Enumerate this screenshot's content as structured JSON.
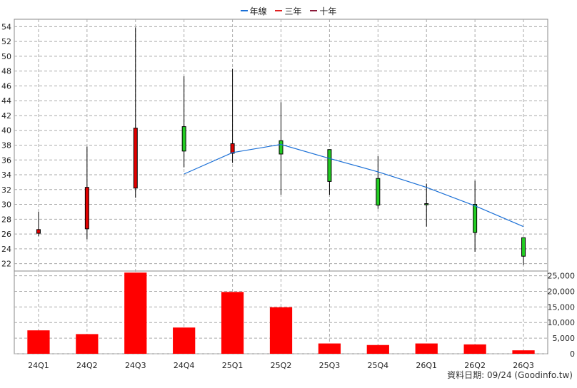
{
  "legend": [
    {
      "label": "年線",
      "color": "#1a6fd6"
    },
    {
      "label": "三年",
      "color": "#e02020"
    },
    {
      "label": "十年",
      "color": "#8b1a3a"
    }
  ],
  "source_note": "資料日期: 09/24  (Goodinfo.tw)",
  "colors": {
    "up": "#e00000",
    "down": "#22cc22",
    "line": "#1a6fd6",
    "volume": "#ff0000"
  },
  "chart_data": [
    {
      "type": "candlestick",
      "categories": [
        "24Q1",
        "24Q2",
        "24Q3",
        "24Q4",
        "25Q1",
        "25Q2",
        "25Q3",
        "25Q4",
        "26Q1",
        "26Q2",
        "26Q3"
      ],
      "ohlc": [
        {
          "open": 26.1,
          "high": 29.0,
          "low": 25.7,
          "close": 26.6
        },
        {
          "open": 26.7,
          "high": 37.8,
          "low": 25.3,
          "close": 32.3
        },
        {
          "open": 32.2,
          "high": 53.9,
          "low": 30.9,
          "close": 40.3
        },
        {
          "open": 40.5,
          "high": 47.3,
          "low": 35.0,
          "close": 37.2
        },
        {
          "open": 36.9,
          "high": 48.3,
          "low": 35.6,
          "close": 38.2
        },
        {
          "open": 38.6,
          "high": 43.8,
          "low": 31.3,
          "close": 36.8
        },
        {
          "open": 37.4,
          "high": 37.4,
          "low": 31.3,
          "close": 33.1
        },
        {
          "open": 33.5,
          "high": 36.5,
          "low": 29.4,
          "close": 29.9
        },
        {
          "open": 30.1,
          "high": 32.8,
          "low": 27.0,
          "close": 30.0
        },
        {
          "open": 30.0,
          "high": 33.2,
          "low": 23.6,
          "close": 26.2
        },
        {
          "open": 25.5,
          "high": 25.5,
          "low": 21.8,
          "close": 23.0
        }
      ],
      "series": [
        {
          "name": "年線",
          "values": [
            null,
            null,
            null,
            34.1,
            37.0,
            38.1,
            36.2,
            34.4,
            32.3,
            29.8,
            27.0
          ]
        }
      ],
      "ylim": [
        21,
        55
      ],
      "yticks": [
        22,
        24,
        26,
        28,
        30,
        32,
        34,
        36,
        38,
        40,
        42,
        44,
        46,
        48,
        50,
        52,
        54
      ],
      "grid": true,
      "legend_position": "top-center"
    },
    {
      "type": "bar",
      "categories": [
        "24Q1",
        "24Q2",
        "24Q3",
        "24Q4",
        "25Q1",
        "25Q2",
        "25Q3",
        "25Q4",
        "26Q1",
        "26Q2",
        "26Q3"
      ],
      "values": [
        7500,
        6300,
        26000,
        8400,
        19800,
        14900,
        3300,
        2800,
        3300,
        3000,
        1100
      ],
      "ylim": [
        0,
        26500
      ],
      "yticks": [
        0,
        5000,
        10000,
        15000,
        20000,
        25000
      ],
      "ytick_labels": [
        "0",
        "5,000",
        "10,000",
        "15,000",
        "20,000",
        "25,000"
      ],
      "grid": true
    }
  ]
}
